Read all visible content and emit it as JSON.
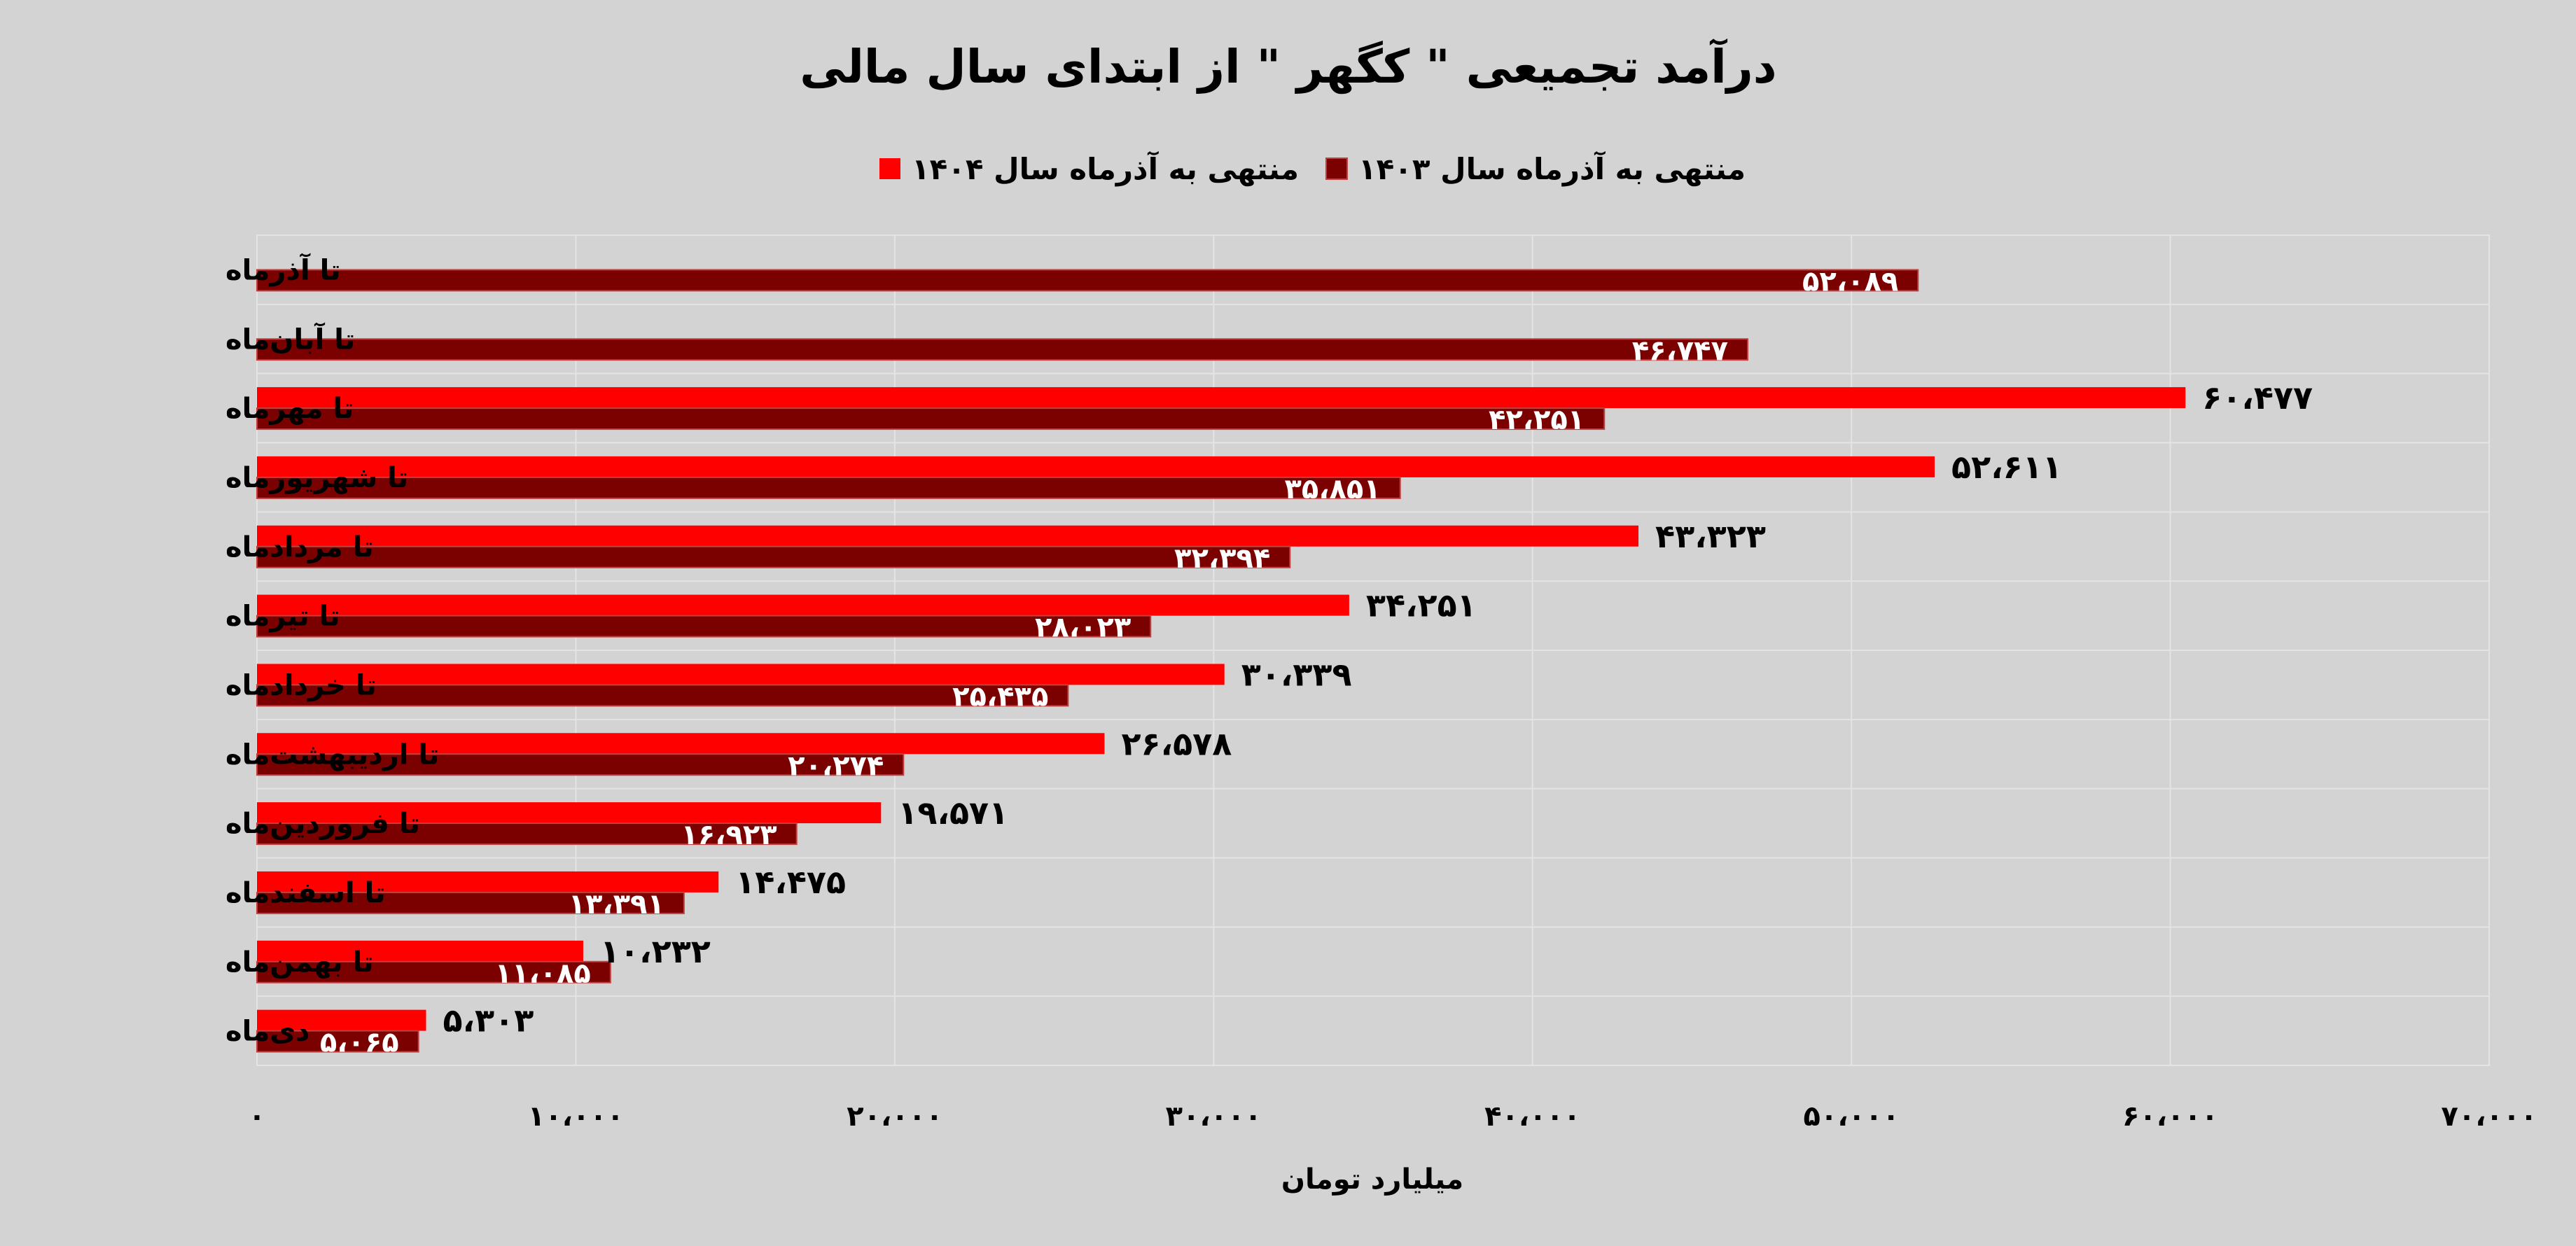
{
  "chart_data": {
    "type": "bar",
    "orientation": "horizontal",
    "title": "درآمد تجمیعی \" کگهر \" از ابتدای سال مالی",
    "xlabel": "میلیارد تومان",
    "ylabel": "",
    "xlim": [
      0,
      70000
    ],
    "x_ticks": [
      0,
      10000,
      20000,
      30000,
      40000,
      50000,
      60000,
      70000
    ],
    "x_tick_labels": [
      "۰",
      "۱۰،۰۰۰",
      "۲۰،۰۰۰",
      "۳۰،۰۰۰",
      "۴۰،۰۰۰",
      "۵۰،۰۰۰",
      "۶۰،۰۰۰",
      "۷۰،۰۰۰"
    ],
    "grid": true,
    "legend_position": "top",
    "categories": [
      "تا آذرماه",
      "تا آبان‌ماه",
      "تا مهرماه",
      "تا شهریورماه",
      "تا مردادماه",
      "تا تیرماه",
      "تا خردادماه",
      "تا اردیبهشت‌ماه",
      "تا فروردین‌ماه",
      "تا اسفندماه",
      "تا بهمن‌ماه",
      "دی‌ماه"
    ],
    "series": [
      {
        "name": "منتهی به آذرماه سال ۱۴۰۴",
        "color": "#ff0000",
        "values": [
          null,
          null,
          60477,
          52611,
          43323,
          34251,
          30339,
          26578,
          19571,
          14475,
          10232,
          5303
        ],
        "labels": [
          "",
          "",
          "۶۰،۴۷۷",
          "۵۲،۶۱۱",
          "۴۳،۳۲۳",
          "۳۴،۲۵۱",
          "۳۰،۳۳۹",
          "۲۶،۵۷۸",
          "۱۹،۵۷۱",
          "۱۴،۴۷۵",
          "۱۰،۲۳۲",
          "۵،۳۰۳"
        ]
      },
      {
        "name": "منتهی به آذرماه سال ۱۴۰۳",
        "color": "#7b0000",
        "values": [
          52089,
          46747,
          42251,
          35851,
          32394,
          28023,
          25435,
          20274,
          16923,
          13391,
          11085,
          5065
        ],
        "labels": [
          "۵۲،۰۸۹",
          "۴۶،۷۴۷",
          "۴۲،۲۵۱",
          "۳۵،۸۵۱",
          "۳۲،۳۹۴",
          "۲۸،۰۲۳",
          "۲۵،۴۳۵",
          "۲۰،۲۷۴",
          "۱۶،۹۲۳",
          "۱۳،۳۹۱",
          "۱۱،۰۸۵",
          "۵،۰۶۵"
        ]
      }
    ]
  }
}
